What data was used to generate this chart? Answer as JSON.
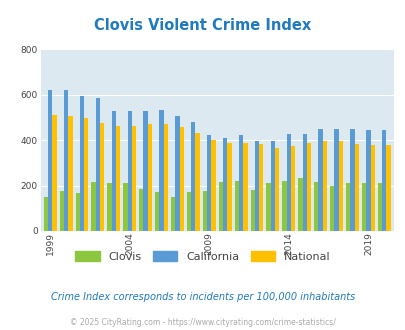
{
  "title": "Clovis Violent Crime Index",
  "subtitle": "Crime Index corresponds to incidents per 100,000 inhabitants",
  "footer": "© 2025 CityRating.com - https://www.cityrating.com/crime-statistics/",
  "years": [
    1999,
    2000,
    2001,
    2002,
    2003,
    2004,
    2005,
    2006,
    2007,
    2008,
    2009,
    2010,
    2011,
    2012,
    2013,
    2014,
    2015,
    2016,
    2017,
    2018,
    2019,
    2020
  ],
  "clovis": [
    148,
    175,
    168,
    215,
    210,
    210,
    185,
    170,
    152,
    170,
    175,
    215,
    220,
    180,
    210,
    220,
    235,
    215,
    200,
    210,
    210,
    210
  ],
  "california": [
    622,
    620,
    596,
    585,
    530,
    530,
    527,
    533,
    508,
    480,
    424,
    412,
    422,
    398,
    396,
    426,
    428,
    450,
    449,
    449,
    445,
    445
  ],
  "national": [
    510,
    507,
    497,
    475,
    465,
    463,
    470,
    473,
    460,
    430,
    400,
    388,
    388,
    383,
    368,
    373,
    388,
    395,
    395,
    383,
    380,
    380
  ],
  "bar_colors": {
    "clovis": "#8dc63f",
    "california": "#5b9bd5",
    "national": "#ffc000"
  },
  "ylim": [
    0,
    800
  ],
  "yticks": [
    0,
    200,
    400,
    600,
    800
  ],
  "xtick_years": [
    1999,
    2004,
    2009,
    2014,
    2019
  ],
  "bg_color": "#dce9f0",
  "title_color": "#1f7abf",
  "legend_label_color": "#444444",
  "subtitle_color": "#1f7abf",
  "footer_color": "#aaaaaa",
  "bar_width": 0.27,
  "bar_alpha": 1.0
}
